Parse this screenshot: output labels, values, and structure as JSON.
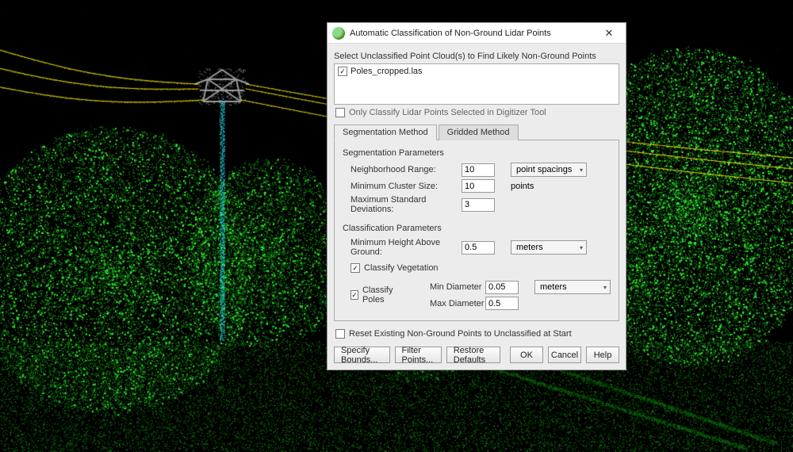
{
  "background": {
    "colors": {
      "sky": "#000000",
      "tree_bright": "#33ff33",
      "tree_dark": "#0a6b0a",
      "ground_green": "#1e9c1e",
      "wire": "#e8d80a",
      "tower_grey": "#9a9a9a",
      "pole_cyan": "#2be0f0"
    }
  },
  "dialog": {
    "title": "Automatic Classification of Non-Ground Lidar Points",
    "select_label": "Select Unclassified Point Cloud(s) to Find Likely Non-Ground Points",
    "files": [
      {
        "name": "Poles_cropped.las",
        "checked": true
      }
    ],
    "only_classify_selected": {
      "label": "Only Classify Lidar Points Selected in Digitizer Tool",
      "checked": false
    },
    "tabs": [
      {
        "key": "segmentation",
        "label": "Segmentation Method",
        "active": true
      },
      {
        "key": "gridded",
        "label": "Gridded Method",
        "active": false
      }
    ],
    "segmentation": {
      "group1_title": "Segmentation Parameters",
      "neighborhood_range": {
        "label": "Neighborhood Range:",
        "value": "10",
        "unit_select": "point spacings"
      },
      "min_cluster_size": {
        "label": "Minimum Cluster Size:",
        "value": "10",
        "unit_text": "points"
      },
      "max_std_dev": {
        "label": "Maximum Standard Deviations:",
        "value": "3"
      },
      "group2_title": "Classification Parameters",
      "min_height": {
        "label": "Minimum Height Above Ground:",
        "value": "0.5",
        "unit_select": "meters"
      },
      "classify_vegetation": {
        "label": "Classify Vegetation",
        "checked": true
      },
      "classify_poles": {
        "label": "Classify Poles",
        "checked": true,
        "min_diameter": {
          "label": "Min Diameter",
          "value": "0.05"
        },
        "max_diameter": {
          "label": "Max Diameter",
          "value": "0.5"
        },
        "unit_select": "meters"
      }
    },
    "reset_existing": {
      "label": "Reset Existing Non-Ground Points to Unclassified at Start",
      "checked": false
    },
    "buttons": {
      "specify_bounds": "Specify Bounds...",
      "filter_points": "Filter Points...",
      "restore_defaults": "Restore Defaults",
      "ok": "OK",
      "cancel": "Cancel",
      "help": "Help"
    }
  }
}
